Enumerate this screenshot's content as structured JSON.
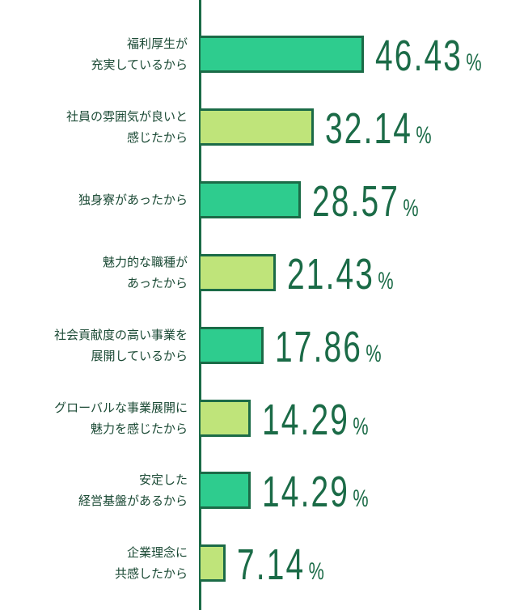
{
  "chart_data": {
    "type": "bar",
    "orientation": "horizontal",
    "categories": [
      "福利厚生が\n充実しているから",
      "社員の雰囲気が良いと\n感じたから",
      "独身寮があったから",
      "魅力的な職種が\nあったから",
      "社会貢献度の高い事業を\n展開しているから",
      "グローバルな事業展開に\n魅力を感じたから",
      "安定した\n経営基盤があるから",
      "企業理念に\n共感したから"
    ],
    "values": [
      46.43,
      32.14,
      28.57,
      21.43,
      17.86,
      14.29,
      14.29,
      7.14
    ],
    "value_labels": [
      "46.43%",
      "32.14%",
      "28.57%",
      "21.43%",
      "17.86%",
      "14.29%",
      "14.29%",
      "7.14%"
    ],
    "colors": [
      "#2ecc8e",
      "#bfe47a",
      "#2ecc8e",
      "#bfe47a",
      "#2ecc8e",
      "#bfe47a",
      "#2ecc8e",
      "#bfe47a"
    ],
    "xlim": [
      0,
      100
    ]
  }
}
